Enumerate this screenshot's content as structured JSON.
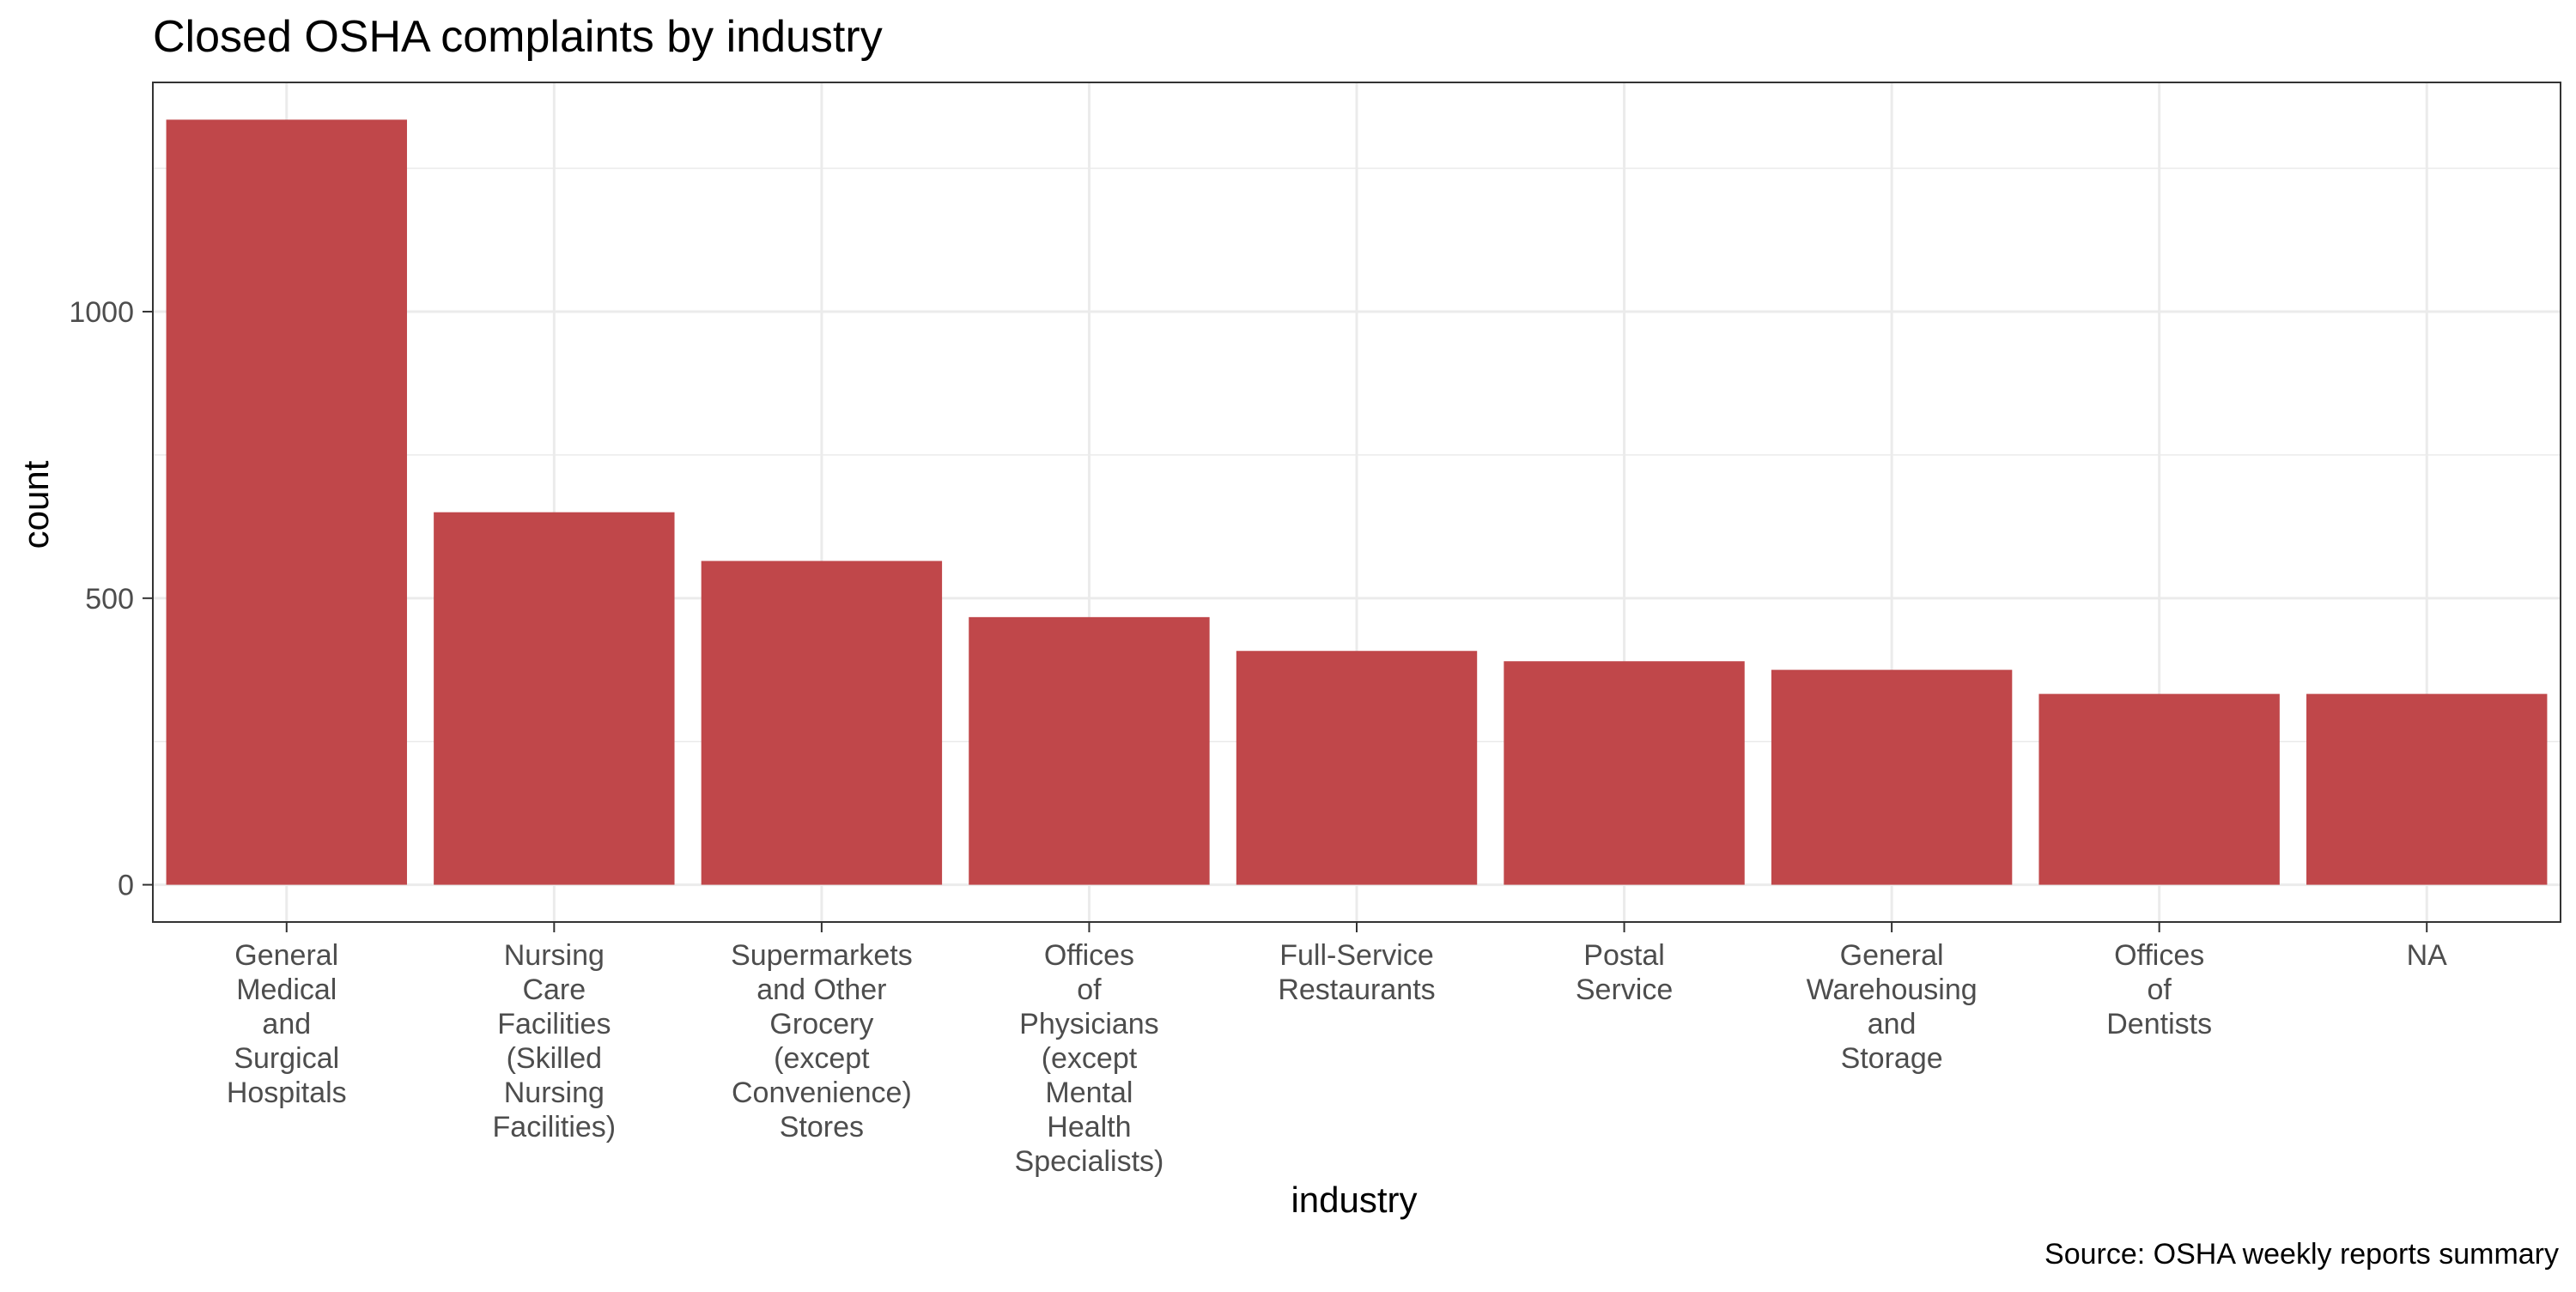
{
  "chart_data": {
    "type": "bar",
    "title": "Closed OSHA complaints by industry",
    "xlabel": "industry",
    "ylabel": "count",
    "caption": "Source: OSHA weekly reports summary",
    "categories": [
      "General Medical and Surgical Hospitals",
      "Nursing Care Facilities (Skilled Nursing Facilities)",
      "Supermarkets and Other Grocery (except Convenience) Stores",
      "Offices of Physicians (except Mental Health Specialists)",
      "Full-Service Restaurants",
      "Postal Service",
      "General Warehousing and Storage",
      "Offices of Dentists",
      "NA"
    ],
    "category_lines": [
      [
        "General",
        "Medical",
        "and",
        "Surgical",
        "Hospitals"
      ],
      [
        "Nursing",
        "Care",
        "Facilities",
        "(Skilled",
        "Nursing",
        "Facilities)"
      ],
      [
        "Supermarkets",
        "and Other",
        "Grocery",
        "(except",
        "Convenience)",
        "Stores"
      ],
      [
        "Offices",
        "of",
        "Physicians",
        "(except",
        "Mental",
        "Health",
        "Specialists)"
      ],
      [
        "Full-Service",
        "Restaurants"
      ],
      [
        "Postal",
        "Service"
      ],
      [
        "General",
        "Warehousing",
        "and",
        "Storage"
      ],
      [
        "Offices",
        "of",
        "Dentists"
      ],
      [
        "NA"
      ]
    ],
    "values": [
      1335,
      650,
      565,
      467,
      408,
      390,
      375,
      333,
      333
    ],
    "ylim": [
      -65,
      1400
    ],
    "yticks": [
      0,
      500,
      1000
    ],
    "ytick_labels": [
      "0",
      "500",
      "1000"
    ],
    "grid": true,
    "legend": "none",
    "bar_color": "#c0474a",
    "grid_color": "#ebebeb",
    "axis_color": "#333333"
  }
}
